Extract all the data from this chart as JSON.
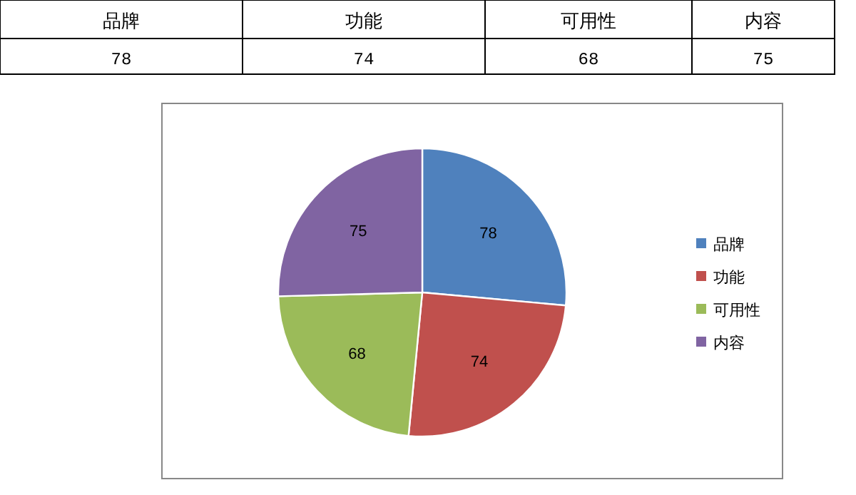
{
  "chart_data": [
    {
      "type": "other",
      "categories": [
        "品牌",
        "功能",
        "可用性",
        "内容"
      ],
      "values": [
        78,
        74,
        68,
        75
      ],
      "data_labels": true
    },
    {
      "type": "pie",
      "categories": [
        "品牌",
        "功能",
        "可用性",
        "内容"
      ],
      "values": [
        78,
        74,
        68,
        75
      ],
      "colors": [
        "#4f81bd",
        "#c0504d",
        "#9bbb59",
        "#8064a2"
      ],
      "data_labels": true,
      "legend": "right"
    }
  ]
}
